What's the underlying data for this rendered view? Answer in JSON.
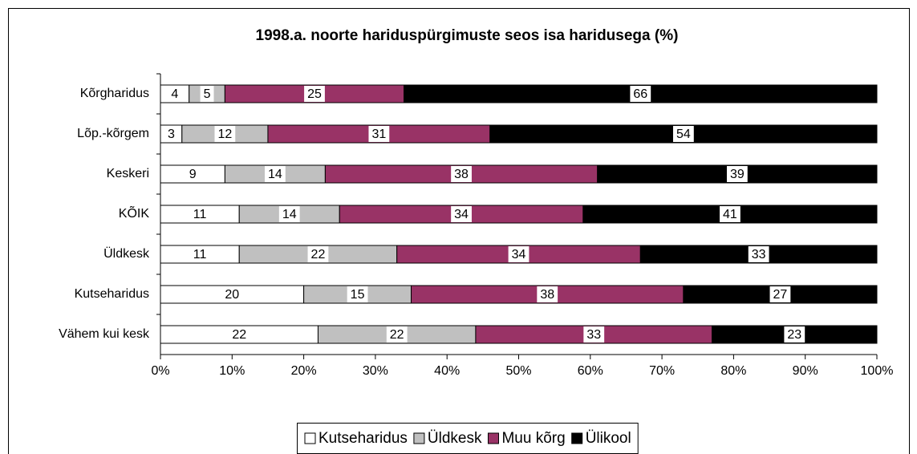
{
  "chart_data": {
    "type": "stacked_barh",
    "title": "1998.a. noorte hariduspürgimuste seos isa haridusega (%)",
    "categories": [
      "Kõrgharidus",
      "Lõp.-kõrgem",
      "Keskeri",
      "KÕIK",
      "Üldkesk",
      "Kutseharidus",
      "Vähem kui kesk"
    ],
    "series": [
      {
        "name": "Kutseharidus",
        "color": "#ffffff",
        "values": [
          4,
          3,
          9,
          11,
          11,
          20,
          22
        ]
      },
      {
        "name": "Üldkesk",
        "color": "#c0c0c0",
        "values": [
          5,
          12,
          14,
          14,
          22,
          15,
          22
        ]
      },
      {
        "name": "Muu kõrg",
        "color": "#993366",
        "values": [
          25,
          31,
          38,
          34,
          34,
          38,
          33
        ]
      },
      {
        "name": "Ülikool",
        "color": "#000000",
        "values": [
          66,
          54,
          39,
          41,
          33,
          27,
          23
        ]
      }
    ],
    "xlim": [
      0,
      100
    ],
    "xticks": [
      {
        "value": 0,
        "label": "0%"
      },
      {
        "value": 10,
        "label": "10%"
      },
      {
        "value": 20,
        "label": "20%"
      },
      {
        "value": 30,
        "label": "30%"
      },
      {
        "value": 40,
        "label": "40%"
      },
      {
        "value": 50,
        "label": "50%"
      },
      {
        "value": 60,
        "label": "60%"
      },
      {
        "value": 70,
        "label": "70%"
      },
      {
        "value": 80,
        "label": "80%"
      },
      {
        "value": 90,
        "label": "90%"
      },
      {
        "value": 100,
        "label": "100%"
      }
    ],
    "legend": "bottom"
  }
}
